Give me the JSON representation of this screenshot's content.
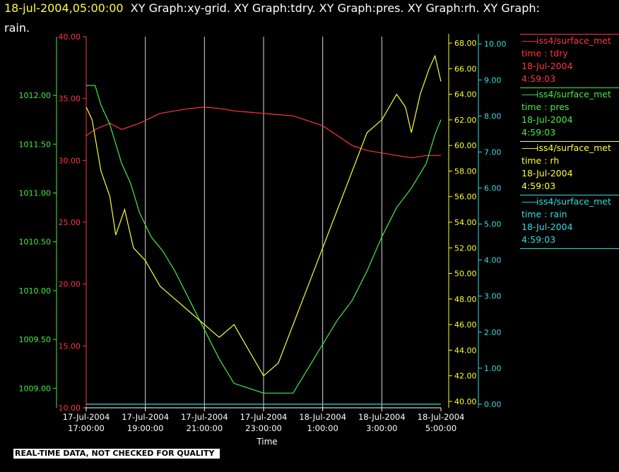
{
  "header": {
    "datetime": "18-jul-2004,05:00:00",
    "graphs_line1": "XY Graph:xy-grid.  XY Graph:tdry.  XY Graph:pres.  XY Graph:rh.  XY Graph:",
    "graphs_line2": "rain."
  },
  "footer_note": "REAL-TIME DATA, NOT CHECKED FOR QUALITY",
  "legend": [
    {
      "source": "iss4/surface_met",
      "label": "time : tdry",
      "date": "18-Jul-2004",
      "time": "4:59:03",
      "color": "#ff3344"
    },
    {
      "source": "iss4/surface_met",
      "label": "time : pres",
      "date": "18-Jul-2004",
      "time": "4:59:03",
      "color": "#44ee44"
    },
    {
      "source": "iss4/surface_met",
      "label": "time : rh",
      "date": "18-Jul-2004",
      "time": "4:59:03",
      "color": "#ffff33"
    },
    {
      "source": "iss4/surface_met",
      "label": "time : rain",
      "date": "18-Jul-2004",
      "time": "4:59:03",
      "color": "#33dddd"
    }
  ],
  "chart_data": {
    "type": "line",
    "xlabel": "Time",
    "x_ticks": [
      {
        "date": "17-Jul-2004",
        "time": "17:00:00"
      },
      {
        "date": "17-Jul-2004",
        "time": "19:00:00"
      },
      {
        "date": "17-Jul-2004",
        "time": "21:00:00"
      },
      {
        "date": "17-Jul-2004",
        "time": "23:00:00"
      },
      {
        "date": "18-Jul-2004",
        "time": "1:00:00"
      },
      {
        "date": "18-Jul-2004",
        "time": "3:00:00"
      },
      {
        "date": "18-Jul-2004",
        "time": "5:00:00"
      }
    ],
    "x_hours_range": [
      "17-Jul-2004 17:00:00",
      "18-Jul-2004 5:00:00"
    ],
    "grid": "vertical",
    "axes": {
      "tdry": {
        "color": "#ff3344",
        "ylim": [
          10,
          40
        ],
        "ticks": [
          "10.00",
          "15.00",
          "20.00",
          "25.00",
          "30.00",
          "35.00",
          "40.00"
        ]
      },
      "pres": {
        "color": "#44ee44",
        "ylim": [
          1008.8,
          1012.6
        ],
        "ticks": [
          "1009.00",
          "1009.50",
          "1010.00",
          "1010.50",
          "1011.00",
          "1011.50",
          "1012.00"
        ]
      },
      "rh": {
        "color": "#ffff33",
        "ylim": [
          39.5,
          68.5
        ],
        "ticks": [
          "40.00",
          "42.00",
          "44.00",
          "46.00",
          "48.00",
          "50.00",
          "52.00",
          "54.00",
          "56.00",
          "58.00",
          "60.00",
          "62.00",
          "64.00",
          "66.00",
          "68.00"
        ]
      },
      "rain": {
        "color": "#33dddd",
        "ylim": [
          -0.1,
          10.2
        ],
        "ticks": [
          "0.00",
          "1.00",
          "2.00",
          "3.00",
          "4.00",
          "5.00",
          "6.00",
          "7.00",
          "8.00",
          "9.00",
          "10.00"
        ]
      }
    },
    "series": [
      {
        "name": "time : tdry",
        "axis": "tdry",
        "color": "#ff3344",
        "x": [
          0,
          0.3,
          0.8,
          1.2,
          1.8,
          2.5,
          3.0,
          3.5,
          4.0,
          4.5,
          5.0,
          5.5,
          6.0,
          6.5,
          7.0,
          7.5,
          8.0,
          8.5,
          9.0,
          9.5,
          10.0,
          10.5,
          11.0,
          11.5,
          12.0
        ],
        "y": [
          32.0,
          32.5,
          33.0,
          32.5,
          33.0,
          33.8,
          34.0,
          34.2,
          34.3,
          34.2,
          34.0,
          33.9,
          33.8,
          33.7,
          33.6,
          33.2,
          32.8,
          32.0,
          31.2,
          30.8,
          30.6,
          30.4,
          30.2,
          30.4,
          30.4
        ]
      },
      {
        "name": "time : pres",
        "axis": "pres",
        "color": "#44ee44",
        "x": [
          0,
          0.3,
          0.5,
          0.8,
          1.2,
          1.5,
          1.8,
          2.2,
          2.6,
          3.0,
          3.5,
          4.0,
          4.5,
          5.0,
          5.5,
          6.0,
          6.5,
          7.0,
          7.5,
          8.0,
          8.5,
          9.0,
          9.5,
          10.0,
          10.5,
          11.0,
          11.5,
          11.8,
          12.0
        ],
        "y": [
          1012.1,
          1012.1,
          1011.9,
          1011.7,
          1011.3,
          1011.1,
          1010.8,
          1010.55,
          1010.4,
          1010.2,
          1009.9,
          1009.6,
          1009.3,
          1009.05,
          1009.0,
          1008.95,
          1008.95,
          1008.95,
          1009.2,
          1009.45,
          1009.7,
          1009.9,
          1010.2,
          1010.55,
          1010.85,
          1011.05,
          1011.3,
          1011.6,
          1011.75
        ]
      },
      {
        "name": "time : rh",
        "axis": "rh",
        "color": "#ffff33",
        "x": [
          0,
          0.2,
          0.5,
          0.8,
          1.0,
          1.3,
          1.6,
          2.0,
          2.5,
          3.0,
          3.5,
          4.0,
          4.5,
          5.0,
          5.5,
          6.0,
          6.5,
          7.0,
          7.5,
          8.0,
          8.5,
          9.0,
          9.5,
          10.0,
          10.5,
          10.8,
          11.0,
          11.3,
          11.6,
          11.8,
          12.0
        ],
        "y": [
          63,
          62,
          58,
          56,
          53,
          55,
          52,
          51,
          49,
          48,
          47,
          46,
          45,
          46,
          44,
          42,
          43,
          46,
          49,
          52,
          55,
          58,
          61,
          62,
          64,
          63,
          61,
          64,
          66,
          67,
          65
        ]
      },
      {
        "name": "time : rain",
        "axis": "rain",
        "color": "#33dddd",
        "x": [
          0,
          12
        ],
        "y": [
          0.0,
          0.0
        ]
      }
    ]
  }
}
